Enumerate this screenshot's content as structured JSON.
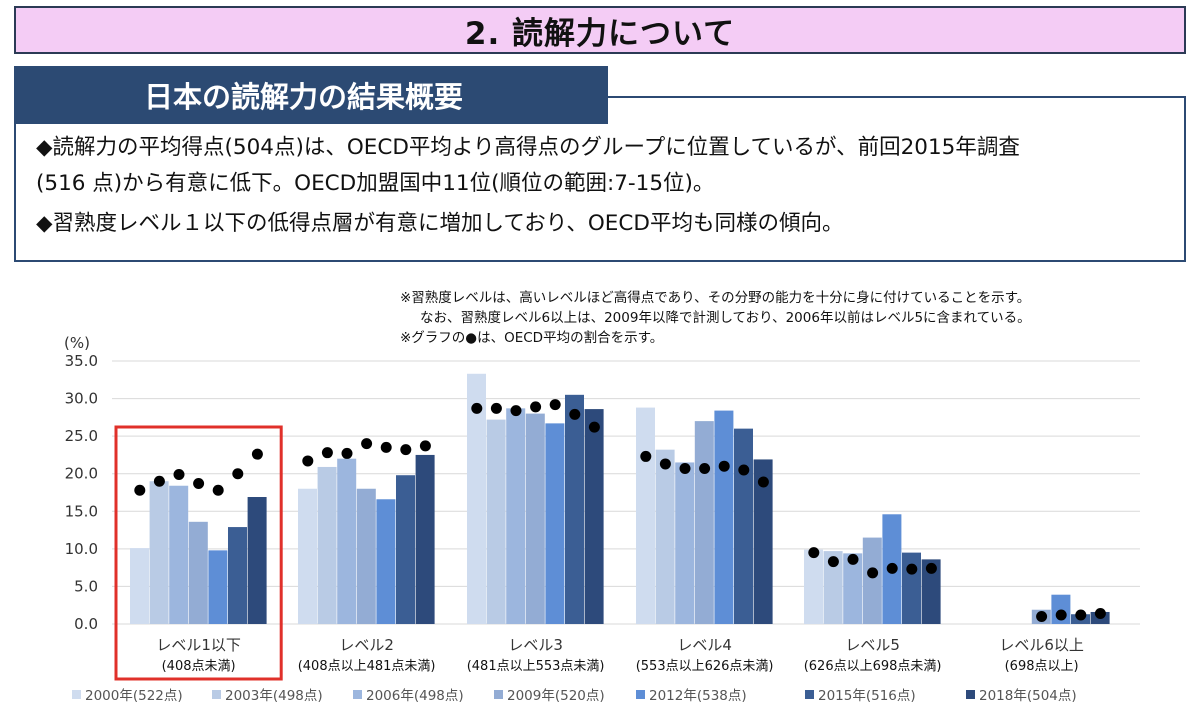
{
  "title": "2. 読解力について",
  "subtitle": "日本の読解力の結果概要",
  "summary": {
    "line1": "◆読解力の平均得点(504点)は、OECD平均より高得点のグループに位置しているが、前回2015年調査",
    "line2": "(516 点)から有意に低下。OECD加盟国中11位(順位の範囲:7-15位)。",
    "line3": "◆習熟度レベル１以下の低得点層が有意に増加しており、OECD平均も同様の傾向。"
  },
  "notes": {
    "note1": "※習熟度レベルは、高いレベルほど高得点であり、その分野の能力を十分に身に付けていることを示す。",
    "note2": "なお、習熟度レベル6以上は、2009年以降で計測しており、2006年以前はレベル5に含まれている。",
    "note3": "※グラフの●は、OECD平均の割合を示す。"
  },
  "chart_data": {
    "type": "bar",
    "ylabel": "(%)",
    "ylim": [
      0,
      35
    ],
    "yticks": [
      "0.0",
      "5.0",
      "10.0",
      "15.0",
      "20.0",
      "25.0",
      "30.0",
      "35.0"
    ],
    "categories": [
      "レベル1以下",
      "レベル2",
      "レベル3",
      "レベル4",
      "レベル5",
      "レベル6以上"
    ],
    "category_sublabels": [
      "(408点未満)",
      "(408点以上481点未満)",
      "(481点以上553点未満)",
      "(553点以上626点未満)",
      "(626点以上698点未満)",
      "(698点以上)"
    ],
    "series": [
      {
        "name": "2000年(522点)",
        "color": "#cfdcef",
        "values": [
          10.1,
          18.0,
          33.3,
          28.8,
          9.9,
          null
        ]
      },
      {
        "name": "2003年(498点)",
        "color": "#b9cbe5",
        "values": [
          19.0,
          20.9,
          27.2,
          23.2,
          9.7,
          null
        ]
      },
      {
        "name": "2006年(498点)",
        "color": "#9cb6de",
        "values": [
          18.4,
          22.0,
          28.7,
          21.5,
          9.4,
          null
        ]
      },
      {
        "name": "2009年(520点)",
        "color": "#93acd4",
        "values": [
          13.6,
          18.0,
          28.0,
          27.0,
          11.5,
          1.9
        ]
      },
      {
        "name": "2012年(538点)",
        "color": "#5e8ed6",
        "values": [
          9.8,
          16.6,
          26.7,
          28.4,
          14.6,
          3.9
        ]
      },
      {
        "name": "2015年(516点)",
        "color": "#3b5e94",
        "values": [
          12.9,
          19.8,
          30.5,
          26.0,
          9.5,
          1.3
        ]
      },
      {
        "name": "2018年(504点)",
        "color": "#2d4a7b",
        "values": [
          16.9,
          22.5,
          28.6,
          21.9,
          8.6,
          1.6
        ]
      }
    ],
    "oecd_average": [
      [
        17.8,
        19.0,
        19.9,
        18.7,
        17.8,
        20.0,
        22.6
      ],
      [
        21.7,
        22.8,
        22.7,
        24.0,
        23.5,
        23.2,
        23.7
      ],
      [
        28.7,
        28.7,
        28.4,
        28.9,
        29.2,
        27.9,
        26.2
      ],
      [
        22.3,
        21.3,
        20.7,
        20.7,
        21.0,
        20.5,
        18.9
      ],
      [
        9.5,
        8.3,
        8.6,
        6.8,
        7.4,
        7.3,
        7.4
      ],
      [
        null,
        null,
        null,
        1.0,
        1.2,
        1.2,
        1.4
      ]
    ],
    "highlight_category": "レベル1以下",
    "highlight_color": "#e0302a",
    "grid": true,
    "legend_position": "bottom"
  }
}
